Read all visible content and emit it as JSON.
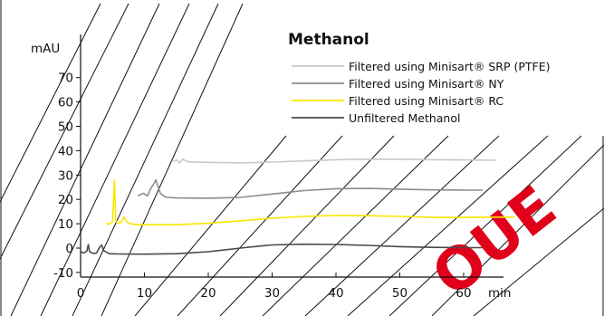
{
  "chart_data": {
    "type": "line",
    "title": "Methanol",
    "ylabel": "mAU",
    "xunit": "min",
    "x_ticks": [
      0,
      10,
      20,
      30,
      40,
      50,
      60
    ],
    "y_ticks": [
      -10,
      0,
      10,
      20,
      30,
      40,
      50,
      60,
      70
    ],
    "xlim": [
      0,
      65
    ],
    "ylim": [
      -10,
      78
    ],
    "legend_position": "top-right",
    "series": [
      {
        "name": "Filtered using Minisart® SRP (PTFE)",
        "color": "#c8c8c8",
        "points": [
          [
            14.5,
            35.5
          ],
          [
            15,
            36.2
          ],
          [
            15.5,
            35.0
          ],
          [
            16,
            36.5
          ],
          [
            16.5,
            35.8
          ],
          [
            17,
            35.4
          ],
          [
            20,
            35.2
          ],
          [
            25,
            35.0
          ],
          [
            30,
            35.3
          ],
          [
            35,
            35.8
          ],
          [
            40,
            36.3
          ],
          [
            45,
            36.5
          ],
          [
            50,
            36.5
          ],
          [
            55,
            36.3
          ],
          [
            60,
            36.2
          ],
          [
            65,
            36.1
          ]
        ]
      },
      {
        "name": "Filtered using Minisart® NY",
        "color": "#8c8c8c",
        "points": [
          [
            9,
            21.5
          ],
          [
            9.8,
            22.5
          ],
          [
            10.5,
            21.5
          ],
          [
            11,
            24.5
          ],
          [
            11.5,
            26.5
          ],
          [
            11.8,
            28.0
          ],
          [
            12.1,
            25.5
          ],
          [
            12.5,
            22.5
          ],
          [
            13,
            21.5
          ],
          [
            13.5,
            20.8
          ],
          [
            15,
            20.6
          ],
          [
            20,
            20.5
          ],
          [
            25,
            20.8
          ],
          [
            30,
            22.2
          ],
          [
            35,
            23.6
          ],
          [
            40,
            24.4
          ],
          [
            45,
            24.5
          ],
          [
            50,
            24.2
          ],
          [
            55,
            23.9
          ],
          [
            60,
            23.8
          ],
          [
            63,
            23.8
          ]
        ]
      },
      {
        "name": "Filtered using Minisart® RC",
        "color": "#fae600",
        "points": [
          [
            4,
            10.0
          ],
          [
            4.5,
            9.9
          ],
          [
            5,
            10.8
          ],
          [
            5.3,
            28.0
          ],
          [
            5.5,
            11.5
          ],
          [
            5.8,
            10.2
          ],
          [
            6.3,
            10.5
          ],
          [
            6.8,
            12.8
          ],
          [
            7.2,
            10.8
          ],
          [
            7.8,
            10.0
          ],
          [
            9,
            9.6
          ],
          [
            15,
            9.6
          ],
          [
            20,
            10.2
          ],
          [
            25,
            11.2
          ],
          [
            30,
            12.3
          ],
          [
            35,
            13.0
          ],
          [
            40,
            13.4
          ],
          [
            45,
            13.3
          ],
          [
            50,
            13.0
          ],
          [
            55,
            12.6
          ],
          [
            60,
            12.6
          ],
          [
            68,
            12.7
          ]
        ]
      },
      {
        "name": "Unfiltered Methanol",
        "color": "#4a4a4a",
        "points": [
          [
            0,
            -1.5
          ],
          [
            0.5,
            -2.0
          ],
          [
            1,
            -1.2
          ],
          [
            1.2,
            1.5
          ],
          [
            1.4,
            -1.5
          ],
          [
            2,
            -2.2
          ],
          [
            2.5,
            -2.0
          ],
          [
            3,
            0.5
          ],
          [
            3.3,
            1.2
          ],
          [
            3.6,
            -1.0
          ],
          [
            4.5,
            -2.3
          ],
          [
            6,
            -2.4
          ],
          [
            10,
            -2.5
          ],
          [
            15,
            -2.3
          ],
          [
            20,
            -1.5
          ],
          [
            25,
            0.0
          ],
          [
            28,
            0.8
          ],
          [
            30,
            1.3
          ],
          [
            35,
            1.6
          ],
          [
            40,
            1.5
          ],
          [
            45,
            1.1
          ],
          [
            50,
            0.6
          ],
          [
            55,
            0.3
          ],
          [
            60,
            0.2
          ],
          [
            63,
            0.2
          ]
        ]
      }
    ]
  },
  "watermark": "OUE"
}
